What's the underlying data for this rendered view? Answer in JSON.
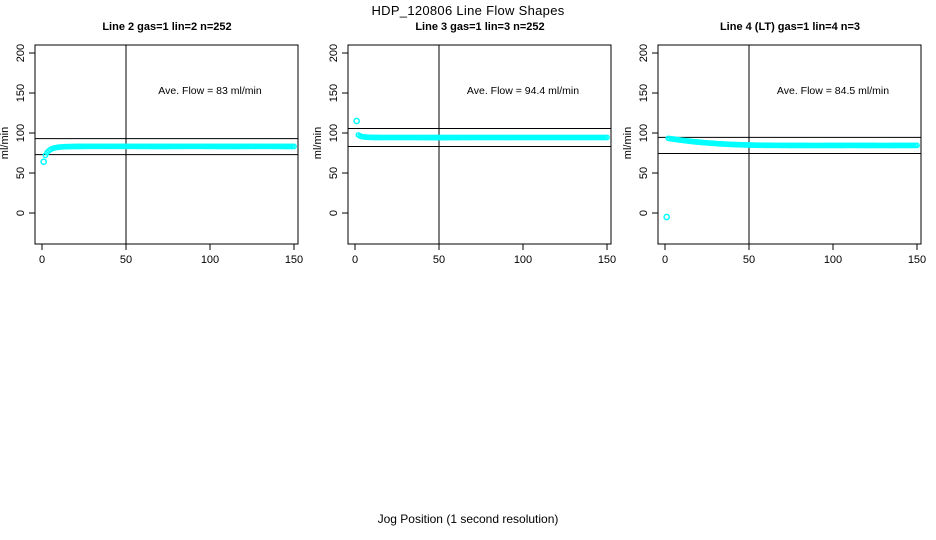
{
  "figure": {
    "title": "HDP_120806  Line Flow Shapes",
    "xlabel": "Jog Position (1 second resolution)",
    "background_color": "#FFFFFF",
    "axis_color": "#000000",
    "point_color": "#00FFFF"
  },
  "chart_data": {
    "type": "scatter",
    "title": "HDP_120806  Line Flow Shapes",
    "xlabel": "Jog Position (1 second resolution)",
    "ylabel": "ml/min",
    "grid": false,
    "legend": "none",
    "xlim": [
      -4.2,
      152.4
    ],
    "ylim": [
      -38.75,
      210
    ],
    "xticks": [
      0,
      50,
      100,
      150
    ],
    "yticks": [
      0,
      50,
      100,
      150,
      200
    ],
    "marker": "open-circle",
    "marker_color": "#00FFFF",
    "panels": [
      {
        "title": "Line 2 gas=1 lin=2 n=252",
        "annotation": "Ave. Flow =  83  ml/min",
        "ave_flow_ml_min": 83,
        "n": 252,
        "vline_x": 50,
        "hlines_y": [
          92.9,
          73.0
        ],
        "series": [
          {
            "name": "flow",
            "points": [
              [
                2,
                72
              ],
              [
                3,
                75.5
              ],
              [
                4,
                77.8
              ],
              [
                5,
                79.3
              ],
              [
                6,
                80.4
              ],
              [
                7,
                81.1
              ],
              [
                8,
                81.6
              ],
              [
                9,
                82
              ],
              [
                10,
                82.3
              ],
              [
                12,
                82.7
              ],
              [
                14,
                82.9
              ],
              [
                16,
                83
              ],
              [
                20,
                83.2
              ],
              [
                30,
                83.3
              ],
              [
                50,
                83.3
              ],
              [
                70,
                83.2
              ],
              [
                90,
                83.3
              ],
              [
                110,
                83.2
              ],
              [
                130,
                83.3
              ],
              [
                150,
                83.2
              ]
            ]
          }
        ],
        "outlier_points": [
          [
            1,
            64
          ]
        ]
      },
      {
        "title": "Line 3 gas=1 lin=3 n=252",
        "annotation": "Ave. Flow =  94.4  ml/min",
        "ave_flow_ml_min": 94.4,
        "n": 252,
        "vline_x": 50,
        "hlines_y": [
          105.7,
          83.1
        ],
        "series": [
          {
            "name": "flow",
            "points": [
              [
                2,
                97.5
              ],
              [
                3,
                96.3
              ],
              [
                4,
                95.6
              ],
              [
                5,
                95.2
              ],
              [
                6,
                94.9
              ],
              [
                8,
                94.7
              ],
              [
                10,
                94.5
              ],
              [
                14,
                94.4
              ],
              [
                30,
                94.4
              ],
              [
                50,
                94.3
              ],
              [
                70,
                94.4
              ],
              [
                90,
                94.4
              ],
              [
                110,
                94.4
              ],
              [
                130,
                94.4
              ],
              [
                150,
                94.4
              ]
            ]
          }
        ],
        "outlier_points": [
          [
            1,
            115
          ]
        ]
      },
      {
        "title": "Line 4 (LT) gas=1 lin=4 n=3",
        "annotation": "Ave. Flow =  84.5  ml/min",
        "ave_flow_ml_min": 84.5,
        "n": 3,
        "vline_x": 50,
        "hlines_y": [
          94.6,
          74.4
        ],
        "series": [
          {
            "name": "flow",
            "points": [
              [
                2,
                93.3
              ],
              [
                4,
                92.7
              ],
              [
                6,
                92.1
              ],
              [
                8,
                91.5
              ],
              [
                10,
                90.9
              ],
              [
                12,
                90.4
              ],
              [
                14,
                89.9
              ],
              [
                16,
                89.4
              ],
              [
                18,
                89
              ],
              [
                20,
                88.6
              ],
              [
                24,
                87.8
              ],
              [
                28,
                87.2
              ],
              [
                32,
                86.6
              ],
              [
                36,
                86.1
              ],
              [
                40,
                85.7
              ],
              [
                44,
                85.4
              ],
              [
                48,
                85.1
              ],
              [
                52,
                84.9
              ],
              [
                56,
                84.7
              ],
              [
                60,
                84.6
              ],
              [
                70,
                84.5
              ],
              [
                90,
                84.4
              ],
              [
                110,
                84.5
              ],
              [
                130,
                84.4
              ],
              [
                150,
                84.5
              ]
            ]
          }
        ],
        "outlier_points": [
          [
            1,
            -5
          ]
        ]
      }
    ]
  }
}
